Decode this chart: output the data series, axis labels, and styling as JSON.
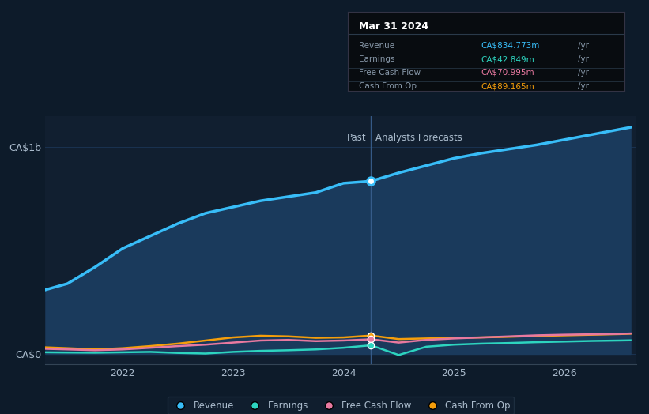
{
  "bg_color": "#0d1b2a",
  "plot_bg_color": "#111f30",
  "ylabel_top": "CA$1b",
  "ylabel_bottom": "CA$0",
  "divider_x": 2024.25,
  "past_label": "Past",
  "forecast_label": "Analysts Forecasts",
  "tooltip_title": "Mar 31 2024",
  "tooltip_rows": [
    [
      "Revenue",
      "CA$834.773m",
      "#38bdf8",
      "/yr"
    ],
    [
      "Earnings",
      "CA$42.849m",
      "#2dd4bf",
      "/yr"
    ],
    [
      "Free Cash Flow",
      "CA$70.995m",
      "#e879a0",
      "/yr"
    ],
    [
      "Cash From Op",
      "CA$89.165m",
      "#f59e0b",
      "/yr"
    ]
  ],
  "revenue": {
    "x": [
      2021.3,
      2021.5,
      2021.75,
      2022.0,
      2022.25,
      2022.5,
      2022.75,
      2023.0,
      2023.25,
      2023.5,
      2023.75,
      2024.0,
      2024.25,
      2024.5,
      2024.75,
      2025.0,
      2025.25,
      2025.5,
      2025.75,
      2026.0,
      2026.25,
      2026.5,
      2026.6
    ],
    "y": [
      310,
      340,
      420,
      510,
      570,
      630,
      680,
      710,
      740,
      760,
      780,
      825,
      835,
      875,
      910,
      945,
      970,
      990,
      1010,
      1035,
      1060,
      1085,
      1095
    ],
    "color": "#38bdf8",
    "fill_color": "#1a3a5c",
    "linewidth": 2.5
  },
  "earnings": {
    "x": [
      2021.3,
      2021.5,
      2021.75,
      2022.0,
      2022.25,
      2022.5,
      2022.75,
      2023.0,
      2023.25,
      2023.5,
      2023.75,
      2024.0,
      2024.25,
      2024.5,
      2024.75,
      2025.0,
      2025.25,
      2025.5,
      2025.75,
      2026.0,
      2026.25,
      2026.5,
      2026.6
    ],
    "y": [
      8,
      7,
      6,
      8,
      10,
      5,
      2,
      10,
      15,
      18,
      22,
      30,
      42,
      -5,
      35,
      45,
      50,
      53,
      57,
      60,
      63,
      65,
      66
    ],
    "color": "#2dd4bf",
    "linewidth": 1.8
  },
  "free_cash_flow": {
    "x": [
      2021.3,
      2021.5,
      2021.75,
      2022.0,
      2022.25,
      2022.5,
      2022.75,
      2023.0,
      2023.25,
      2023.5,
      2023.75,
      2024.0,
      2024.25,
      2024.5,
      2024.75,
      2025.0,
      2025.25,
      2025.5,
      2025.75,
      2026.0,
      2026.25,
      2026.5,
      2026.6
    ],
    "y": [
      25,
      22,
      18,
      22,
      30,
      38,
      45,
      55,
      65,
      68,
      62,
      65,
      71,
      55,
      68,
      75,
      80,
      85,
      90,
      93,
      95,
      97,
      99
    ],
    "color": "#e879a0",
    "linewidth": 1.8
  },
  "cash_from_op": {
    "x": [
      2021.3,
      2021.5,
      2021.75,
      2022.0,
      2022.25,
      2022.5,
      2022.75,
      2023.0,
      2023.25,
      2023.5,
      2023.75,
      2024.0,
      2024.25,
      2024.5,
      2024.75,
      2025.0,
      2025.25,
      2025.5,
      2025.75,
      2026.0,
      2026.25,
      2026.5,
      2026.6
    ],
    "y": [
      32,
      28,
      22,
      28,
      38,
      50,
      65,
      80,
      88,
      85,
      78,
      80,
      89,
      72,
      75,
      78,
      80,
      83,
      87,
      90,
      93,
      96,
      98
    ],
    "color": "#f59e0b",
    "linewidth": 1.8
  },
  "legend": [
    {
      "label": "Revenue",
      "color": "#38bdf8"
    },
    {
      "label": "Earnings",
      "color": "#2dd4bf"
    },
    {
      "label": "Free Cash Flow",
      "color": "#e879a0"
    },
    {
      "label": "Cash From Op",
      "color": "#f59e0b"
    }
  ],
  "xlim": [
    2021.3,
    2026.65
  ],
  "ylim": [
    -50,
    1150
  ],
  "grid_color": "#1e3a5f",
  "text_color": "#aabbcc",
  "divider_color": "#3a6090"
}
